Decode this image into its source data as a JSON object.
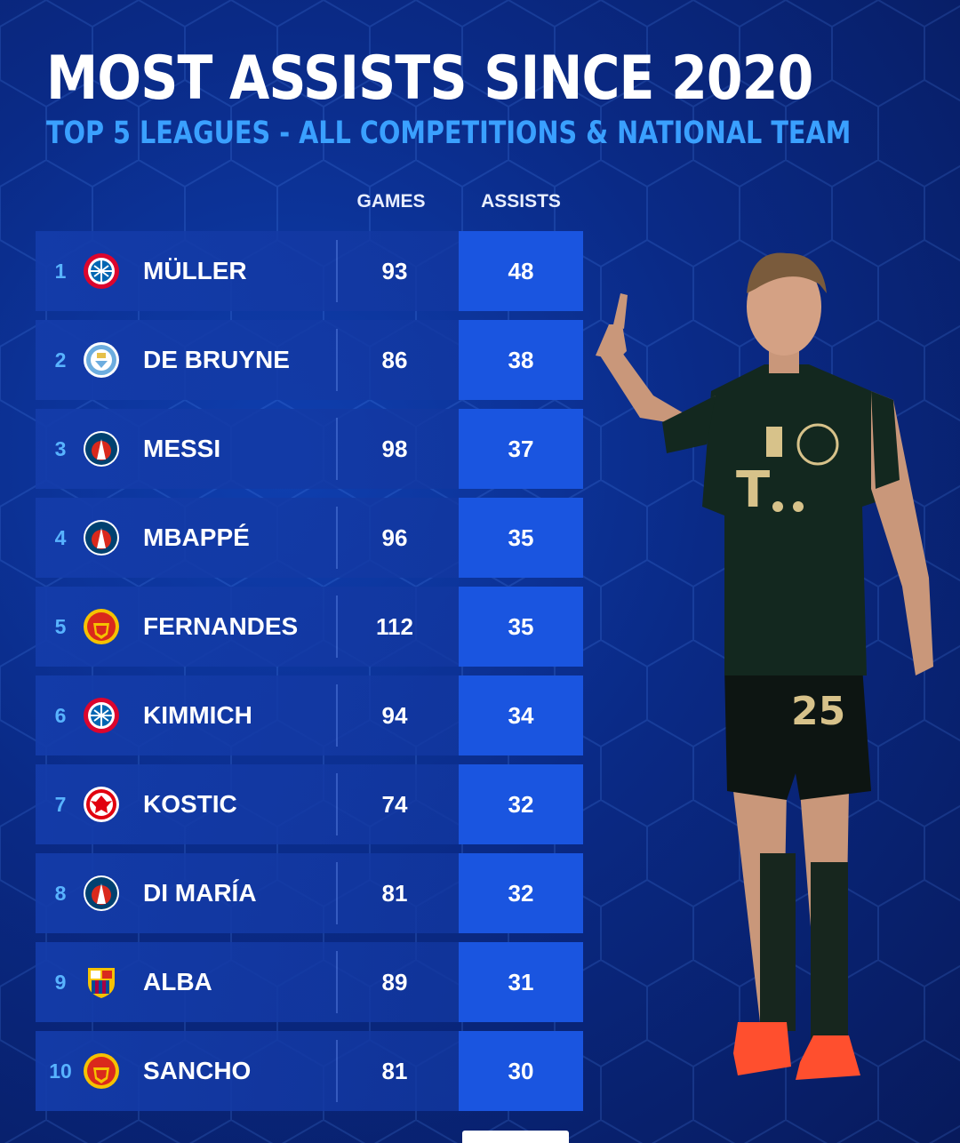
{
  "header": {
    "title": "MOST ASSISTS SINCE 2020",
    "subtitle": "TOP 5 LEAGUES - ALL COMPETITIONS & NATIONAL TEAM"
  },
  "columns": {
    "games": "GAMES",
    "assists": "ASSISTS"
  },
  "rows": [
    {
      "rank": "1",
      "player": "MÜLLER",
      "games": "93",
      "assists": "48",
      "crest": "bayern-munich-crest-icon"
    },
    {
      "rank": "2",
      "player": "DE BRUYNE",
      "games": "86",
      "assists": "38",
      "crest": "manchester-city-crest-icon"
    },
    {
      "rank": "3",
      "player": "MESSI",
      "games": "98",
      "assists": "37",
      "crest": "psg-crest-icon"
    },
    {
      "rank": "4",
      "player": "MBAPPÉ",
      "games": "96",
      "assists": "35",
      "crest": "psg-crest-icon"
    },
    {
      "rank": "5",
      "player": "FERNANDES",
      "games": "112",
      "assists": "35",
      "crest": "manchester-united-crest-icon"
    },
    {
      "rank": "6",
      "player": "KIMMICH",
      "games": "94",
      "assists": "34",
      "crest": "bayern-munich-crest-icon"
    },
    {
      "rank": "7",
      "player": "KOSTIC",
      "games": "74",
      "assists": "32",
      "crest": "eintracht-frankfurt-crest-icon"
    },
    {
      "rank": "8",
      "player": "DI MARÍA",
      "games": "81",
      "assists": "32",
      "crest": "psg-crest-icon"
    },
    {
      "rank": "9",
      "player": "ALBA",
      "games": "89",
      "assists": "31",
      "crest": "barcelona-crest-icon"
    },
    {
      "rank": "10",
      "player": "SANCHO",
      "games": "81",
      "assists": "30",
      "crest": "manchester-united-crest-icon"
    }
  ],
  "colors": {
    "title": "#ffffff",
    "subtitle": "#3aa0ff",
    "rank": "#58b3ff",
    "assist_box": "#1a55e0",
    "background": "#0a2a86"
  }
}
